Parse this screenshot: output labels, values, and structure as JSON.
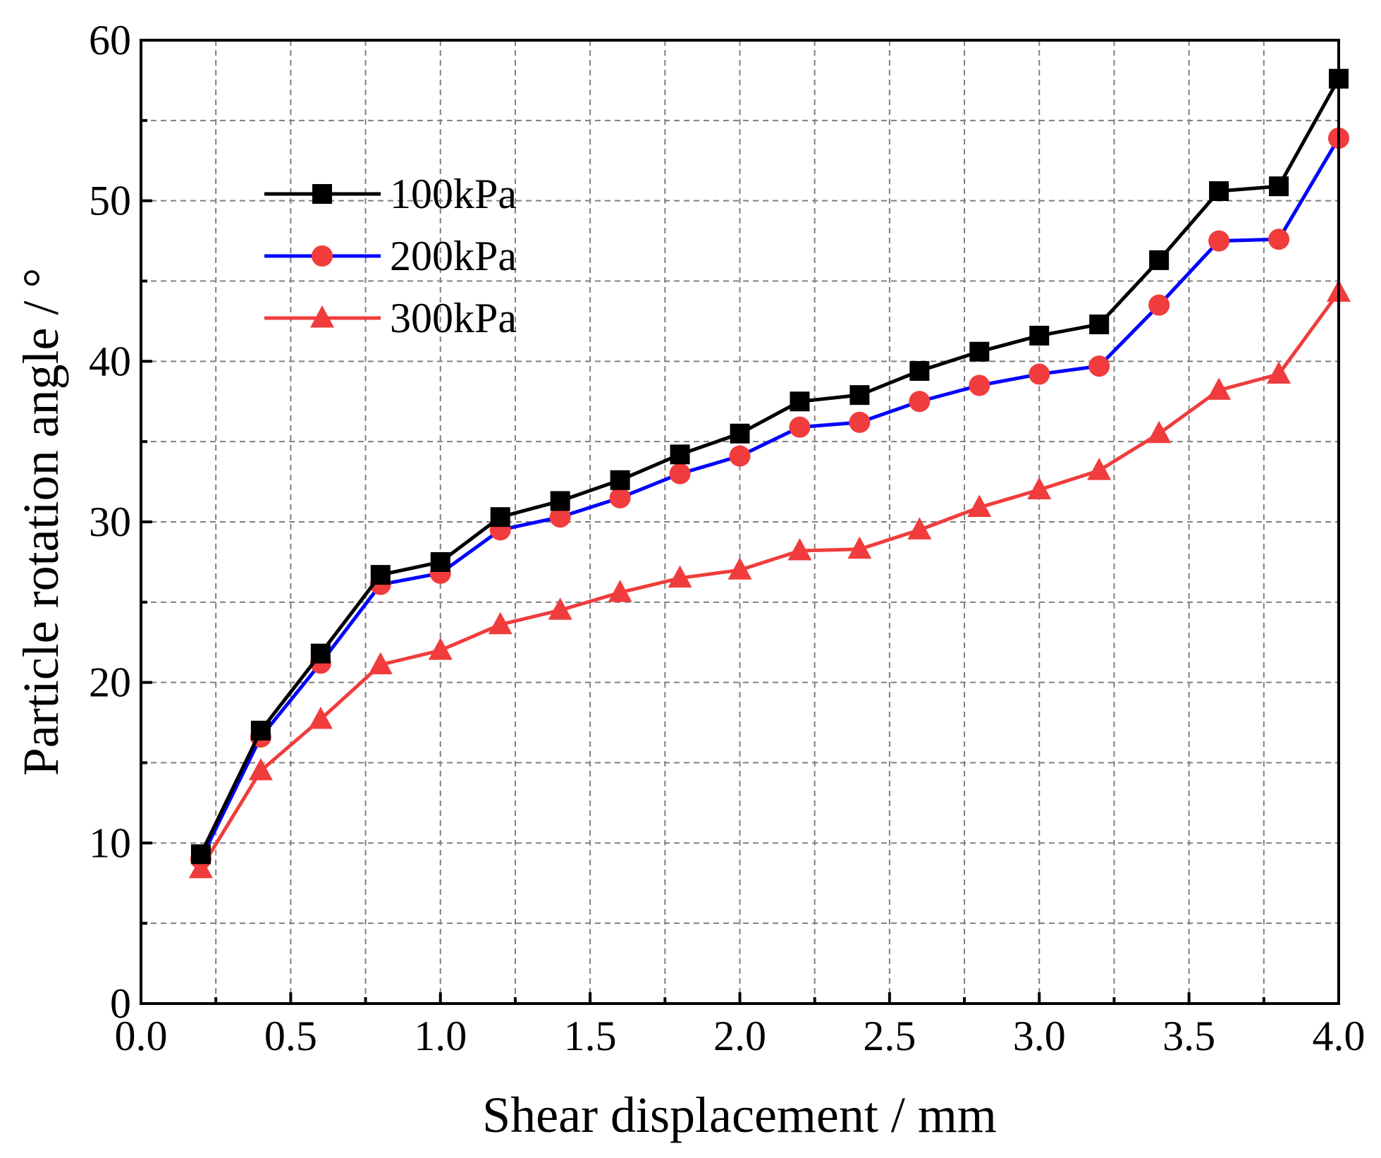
{
  "chart_data": {
    "type": "line",
    "title": "",
    "xlabel": "Shear displacement / mm",
    "ylabel": "Particle rotation angle / °",
    "xlim": [
      0.0,
      4.0
    ],
    "ylim": [
      0,
      60
    ],
    "x_ticks": [
      "0.0",
      "0.5",
      "1.0",
      "1.5",
      "2.0",
      "2.5",
      "3.0",
      "3.5",
      "4.0"
    ],
    "y_ticks": [
      "0",
      "10",
      "20",
      "30",
      "40",
      "50",
      "60"
    ],
    "grid": true,
    "legend_position": "upper-left",
    "x": [
      0.2,
      0.4,
      0.6,
      0.8,
      1.0,
      1.2,
      1.4,
      1.6,
      1.8,
      2.0,
      2.2,
      2.4,
      2.6,
      2.8,
      3.0,
      3.2,
      3.4,
      3.6,
      3.8,
      4.0
    ],
    "series": [
      {
        "name": "100kPa",
        "line_color": "#000000",
        "marker_color": "#000000",
        "marker": "square",
        "values": [
          9.3,
          17.0,
          21.8,
          26.7,
          27.5,
          30.3,
          31.3,
          32.6,
          34.2,
          35.5,
          37.5,
          37.9,
          39.4,
          40.6,
          41.6,
          42.3,
          46.3,
          50.6,
          50.9,
          57.6
        ]
      },
      {
        "name": "200kPa",
        "line_color": "#0000ff",
        "marker_color": "#f03c3c",
        "marker": "circle",
        "values": [
          9.0,
          16.6,
          21.2,
          26.1,
          26.8,
          29.5,
          30.3,
          31.5,
          33.0,
          34.1,
          35.9,
          36.2,
          37.5,
          38.5,
          39.2,
          39.7,
          43.5,
          47.5,
          47.6,
          53.9
        ]
      },
      {
        "name": "300kPa",
        "line_color": "#f03c3c",
        "marker_color": "#f03c3c",
        "marker": "triangle",
        "values": [
          8.4,
          14.5,
          17.7,
          21.1,
          22.0,
          23.6,
          24.5,
          25.6,
          26.5,
          27.0,
          28.2,
          28.3,
          29.5,
          30.9,
          32.0,
          33.2,
          35.5,
          38.2,
          39.2,
          44.3
        ]
      }
    ]
  }
}
